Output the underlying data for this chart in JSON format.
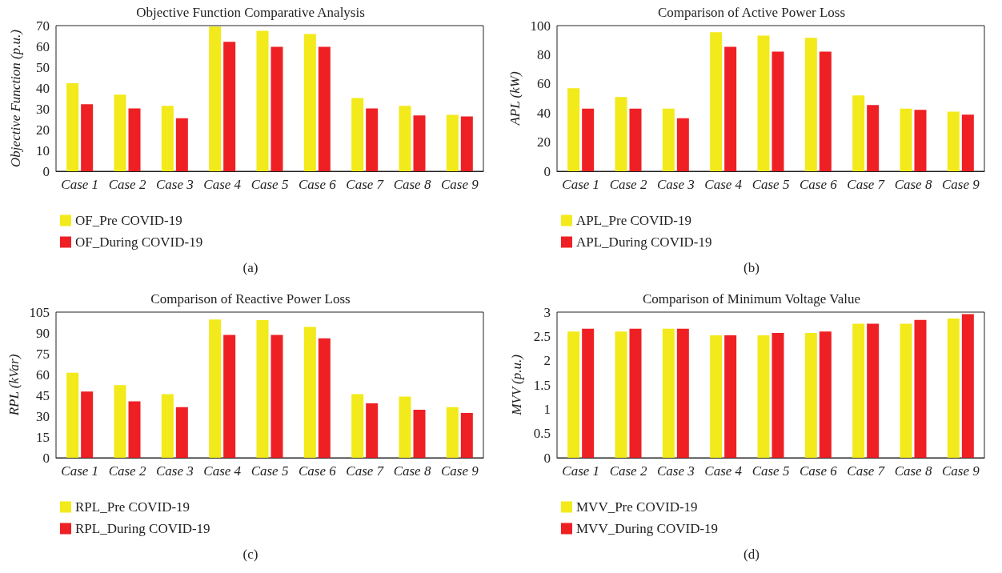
{
  "chart_data": [
    {
      "type": "bar",
      "title": "Objective Function Comparative Analysis",
      "ylabel": "Objective Function (p.u.)",
      "categories": [
        "Case 1",
        "Case 2",
        "Case 3",
        "Case 4",
        "Case 5",
        "Case 6",
        "Case 7",
        "Case 8",
        "Case 9"
      ],
      "series": [
        {
          "name": "OF_Pre COVID-19",
          "color": "#f2ea1a",
          "values": [
            42.3,
            36.8,
            31.4,
            69.5,
            67.5,
            66,
            35.2,
            31.4,
            27.1
          ]
        },
        {
          "name": "OF_During COVID-19",
          "color": "#ee2024",
          "values": [
            32.2,
            30.2,
            25.5,
            62.2,
            59.8,
            59.8,
            30.2,
            26.8,
            26.3
          ]
        }
      ],
      "ylim": [
        0,
        70
      ],
      "yticks": [
        0,
        10,
        20,
        30,
        40,
        50,
        60,
        70
      ],
      "grid": false,
      "legend": "bottom left",
      "annotations": [
        "(a)"
      ]
    },
    {
      "type": "bar",
      "title": "Comparison of Active Power Loss",
      "ylabel": "APL (kW)",
      "categories": [
        "Case 1",
        "Case 2",
        "Case 3",
        "Case 4",
        "Case 5",
        "Case 6",
        "Case 7",
        "Case 8",
        "Case 9"
      ],
      "series": [
        {
          "name": "APL_Pre COVID-19",
          "color": "#f2ea1a",
          "values": [
            57,
            51,
            43,
            95.4,
            93.2,
            91.6,
            52.1,
            43,
            41
          ]
        },
        {
          "name": "APL_During COVID-19",
          "color": "#ee2024",
          "values": [
            43,
            43,
            36.4,
            85.4,
            82.1,
            82.1,
            45.5,
            42.2,
            38.9
          ]
        }
      ],
      "ylim": [
        0,
        100
      ],
      "yticks": [
        0,
        20,
        40,
        60,
        80,
        100
      ],
      "grid": false,
      "legend": "bottom left",
      "annotations": [
        "(b)"
      ]
    },
    {
      "type": "bar",
      "title": "Comparison of Reactive Power Loss",
      "ylabel": "RPL (kVar)",
      "categories": [
        "Case 1",
        "Case 2",
        "Case 3",
        "Case 4",
        "Case 5",
        "Case 6",
        "Case 7",
        "Case 8",
        "Case 9"
      ],
      "series": [
        {
          "name": "RPL_Pre COVID-19",
          "color": "#f2ea1a",
          "values": [
            61.3,
            52.4,
            45.9,
            99.7,
            99.2,
            94.3,
            45.9,
            44.2,
            36.5
          ]
        },
        {
          "name": "RPL_During COVID-19",
          "color": "#ee2024",
          "values": [
            47.7,
            40.7,
            36.5,
            88.5,
            88.5,
            86.1,
            39.3,
            34.6,
            32.3
          ]
        }
      ],
      "ylim": [
        0,
        105
      ],
      "yticks": [
        0,
        15,
        30,
        45,
        60,
        75,
        90,
        105
      ],
      "grid": false,
      "legend": "bottom left",
      "annotations": [
        "(c)"
      ]
    },
    {
      "type": "bar",
      "title": "Comparison of Minimum Voltage Value",
      "ylabel": "MVV (p.u.)",
      "categories": [
        "Case 1",
        "Case 2",
        "Case 3",
        "Case 4",
        "Case 5",
        "Case 6",
        "Case 7",
        "Case 8",
        "Case 9"
      ],
      "series": [
        {
          "name": "MVV_Pre COVID-19",
          "color": "#f2ea1a",
          "values": [
            2.6,
            2.6,
            2.66,
            2.52,
            2.52,
            2.57,
            2.76,
            2.76,
            2.87
          ]
        },
        {
          "name": "MVV_During COVID-19",
          "color": "#ee2024",
          "values": [
            2.66,
            2.66,
            2.66,
            2.52,
            2.57,
            2.6,
            2.76,
            2.84,
            2.96
          ]
        }
      ],
      "ylim": [
        0,
        3
      ],
      "yticks": [
        0,
        0.5,
        1,
        1.5,
        2,
        2.5,
        3
      ],
      "grid": false,
      "legend": "bottom left",
      "annotations": [
        "(d)"
      ]
    }
  ]
}
